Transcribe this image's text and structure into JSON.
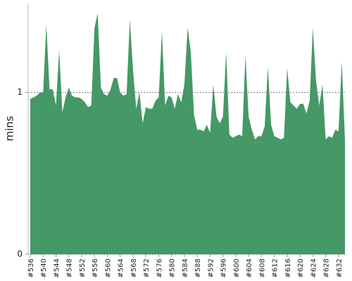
{
  "chart_data": {
    "type": "area",
    "y_label": "mins",
    "color": "#449966",
    "categories": [
      "#536",
      null,
      null,
      null,
      "#540",
      null,
      null,
      null,
      "#544",
      null,
      null,
      null,
      "#548",
      null,
      null,
      null,
      "#552",
      null,
      null,
      null,
      "#556",
      null,
      null,
      null,
      "#560",
      null,
      null,
      null,
      "#564",
      null,
      null,
      null,
      "#568",
      null,
      null,
      null,
      "#572",
      null,
      null,
      null,
      "#576",
      null,
      null,
      null,
      "#580",
      null,
      null,
      null,
      "#584",
      null,
      null,
      null,
      "#588",
      null,
      null,
      null,
      "#592",
      null,
      null,
      null,
      "#596",
      null,
      null,
      null,
      "#600",
      null,
      null,
      null,
      "#604",
      null,
      null,
      null,
      "#608",
      null,
      null,
      null,
      "#612",
      null,
      null,
      null,
      "#616",
      null,
      null,
      null,
      "#620",
      null,
      null,
      null,
      "#624",
      null,
      null,
      null,
      "#628",
      null,
      null,
      null,
      "#632",
      null,
      null
    ],
    "values": [
      0.96,
      0.97,
      0.98,
      1.0,
      1.0,
      1.42,
      1.02,
      1.02,
      0.92,
      1.26,
      0.88,
      0.97,
      1.03,
      0.98,
      0.97,
      0.97,
      0.96,
      0.94,
      0.91,
      0.92,
      1.4,
      1.49,
      1.03,
      0.99,
      0.98,
      1.02,
      1.09,
      1.09,
      1.0,
      0.98,
      0.99,
      1.45,
      1.14,
      0.9,
      1.0,
      0.81,
      0.91,
      0.9,
      0.9,
      0.95,
      0.97,
      1.38,
      0.92,
      0.98,
      0.97,
      0.9,
      0.99,
      0.94,
      1.05,
      1.4,
      1.25,
      0.86,
      0.77,
      0.77,
      0.76,
      0.8,
      0.75,
      1.05,
      0.85,
      0.81,
      0.85,
      1.25,
      0.74,
      0.72,
      0.73,
      0.74,
      0.73,
      1.23,
      0.85,
      0.77,
      0.71,
      0.73,
      0.73,
      0.79,
      1.16,
      0.8,
      0.73,
      0.72,
      0.71,
      0.72,
      1.15,
      0.94,
      0.92,
      0.9,
      0.93,
      0.93,
      0.87,
      0.95,
      1.4,
      1.07,
      0.92,
      1.05,
      0.71,
      0.73,
      0.72,
      0.77,
      0.76,
      1.19,
      0.71
    ],
    "ylim": [
      0,
      1.55
    ],
    "yticks": [
      0,
      1
    ],
    "grid": true
  }
}
